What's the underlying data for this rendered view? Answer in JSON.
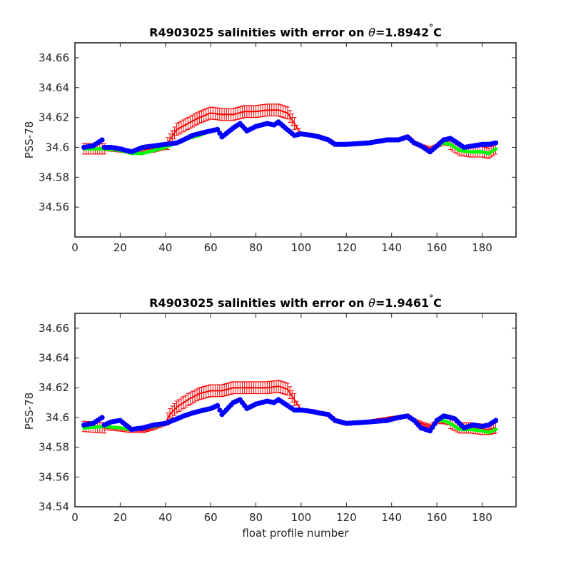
{
  "colors": {
    "error_bar": "#ff0000",
    "calibrated": "#00ff00",
    "float": "#0000ff",
    "axes": "#262626"
  },
  "chart_data": [
    {
      "type": "scatter",
      "title_prefix": "R4903025 salinities with error on ",
      "title_theta": "θ",
      "title_suffix": "=1.8942",
      "title_degree": "°",
      "title_unit": "C",
      "xlabel": "",
      "ylabel": "PSS-78",
      "xlim": [
        0,
        195
      ],
      "ylim": [
        34.54,
        34.67
      ],
      "xticks": [
        0,
        20,
        40,
        60,
        80,
        100,
        120,
        140,
        160,
        180
      ],
      "yticks": [
        34.56,
        34.58,
        34.6,
        34.62,
        34.64,
        34.66
      ],
      "ytick_labels": [
        "34.56",
        "34.58",
        "34.6",
        "34.62",
        "34.64",
        "34.66"
      ],
      "grid": false,
      "error_ranges": [
        {
          "x": [
            4,
            13
          ],
          "d": 0.0035
        },
        {
          "x": [
            41,
            97
          ],
          "d": 0.004
        },
        {
          "x": [
            166,
            187
          ],
          "d": 0.0035
        }
      ],
      "float_anchors": [
        [
          4,
          34.6
        ],
        [
          8,
          34.601
        ],
        [
          12,
          34.605
        ],
        [
          13,
          34.6
        ],
        [
          16,
          34.6
        ],
        [
          20,
          34.599
        ],
        [
          25,
          34.597
        ],
        [
          30,
          34.6
        ],
        [
          35,
          34.601
        ],
        [
          40,
          34.602
        ],
        [
          45,
          34.603
        ],
        [
          48,
          34.605
        ],
        [
          52,
          34.608
        ],
        [
          57,
          34.61
        ],
        [
          60,
          34.611
        ],
        [
          63,
          34.612
        ],
        [
          65,
          34.607
        ],
        [
          70,
          34.613
        ],
        [
          73,
          34.616
        ],
        [
          76,
          34.611
        ],
        [
          80,
          34.614
        ],
        [
          85,
          34.616
        ],
        [
          88,
          34.615
        ],
        [
          90,
          34.617
        ],
        [
          93,
          34.613
        ],
        [
          97,
          34.608
        ],
        [
          100,
          34.609
        ],
        [
          105,
          34.608
        ],
        [
          108,
          34.607
        ],
        [
          112,
          34.605
        ],
        [
          115,
          34.602
        ],
        [
          120,
          34.602
        ],
        [
          130,
          34.603
        ],
        [
          138,
          34.605
        ],
        [
          143,
          34.605
        ],
        [
          147,
          34.607
        ],
        [
          150,
          34.603
        ],
        [
          153,
          34.601
        ],
        [
          157,
          34.597
        ],
        [
          160,
          34.601
        ],
        [
          163,
          34.605
        ],
        [
          166,
          34.606
        ],
        [
          168,
          34.604
        ],
        [
          172,
          34.6
        ],
        [
          176,
          34.601
        ],
        [
          180,
          34.602
        ],
        [
          183,
          34.602
        ],
        [
          186,
          34.603
        ]
      ],
      "calib_anchors": [
        [
          4,
          34.599
        ],
        [
          13,
          34.599
        ],
        [
          20,
          34.598
        ],
        [
          25,
          34.596
        ],
        [
          30,
          34.596
        ],
        [
          35,
          34.598
        ],
        [
          40,
          34.6
        ],
        [
          45,
          34.603
        ],
        [
          50,
          34.606
        ],
        [
          55,
          34.608
        ],
        [
          60,
          34.611
        ],
        [
          63,
          34.612
        ],
        [
          65,
          34.607
        ],
        [
          70,
          34.613
        ],
        [
          73,
          34.616
        ],
        [
          76,
          34.611
        ],
        [
          80,
          34.614
        ],
        [
          85,
          34.616
        ],
        [
          88,
          34.615
        ],
        [
          90,
          34.617
        ],
        [
          93,
          34.613
        ],
        [
          97,
          34.608
        ],
        [
          100,
          34.609
        ],
        [
          105,
          34.608
        ],
        [
          108,
          34.607
        ],
        [
          112,
          34.605
        ],
        [
          115,
          34.602
        ],
        [
          120,
          34.602
        ],
        [
          130,
          34.603
        ],
        [
          138,
          34.605
        ],
        [
          143,
          34.605
        ],
        [
          147,
          34.607
        ],
        [
          150,
          34.603
        ],
        [
          153,
          34.601
        ],
        [
          157,
          34.597
        ],
        [
          160,
          34.601
        ],
        [
          163,
          34.603
        ],
        [
          166,
          34.602
        ],
        [
          170,
          34.598
        ],
        [
          175,
          34.597
        ],
        [
          180,
          34.597
        ],
        [
          183,
          34.596
        ],
        [
          186,
          34.599
        ]
      ],
      "raw_anchors": [
        [
          4,
          34.599
        ],
        [
          13,
          34.599
        ],
        [
          20,
          34.598
        ],
        [
          25,
          34.597
        ],
        [
          30,
          34.597
        ],
        [
          35,
          34.598
        ],
        [
          40,
          34.6
        ],
        [
          42,
          34.605
        ],
        [
          45,
          34.612
        ],
        [
          50,
          34.616
        ],
        [
          55,
          34.62
        ],
        [
          60,
          34.623
        ],
        [
          65,
          34.622
        ],
        [
          70,
          34.622
        ],
        [
          75,
          34.624
        ],
        [
          80,
          34.624
        ],
        [
          85,
          34.625
        ],
        [
          90,
          34.625
        ],
        [
          94,
          34.623
        ],
        [
          97,
          34.616
        ],
        [
          100,
          34.609
        ],
        [
          105,
          34.608
        ],
        [
          108,
          34.607
        ],
        [
          112,
          34.605
        ],
        [
          115,
          34.602
        ],
        [
          120,
          34.602
        ],
        [
          130,
          34.603
        ],
        [
          138,
          34.605
        ],
        [
          143,
          34.605
        ],
        [
          147,
          34.607
        ],
        [
          150,
          34.603
        ],
        [
          153,
          34.601
        ],
        [
          157,
          34.599
        ],
        [
          160,
          34.601
        ],
        [
          163,
          34.603
        ],
        [
          166,
          34.602
        ],
        [
          170,
          34.598
        ],
        [
          175,
          34.597
        ],
        [
          180,
          34.597
        ],
        [
          183,
          34.596
        ],
        [
          186,
          34.599
        ]
      ]
    },
    {
      "type": "scatter",
      "title_prefix": "R4903025 salinities with error on ",
      "title_theta": "θ",
      "title_suffix": "=1.9461",
      "title_degree": "°",
      "title_unit": "C",
      "xlabel": "float profile number",
      "ylabel": "PSS-78",
      "xlim": [
        0,
        195
      ],
      "ylim": [
        34.54,
        34.67
      ],
      "xticks": [
        0,
        20,
        40,
        60,
        80,
        100,
        120,
        140,
        160,
        180
      ],
      "yticks": [
        34.54,
        34.56,
        34.58,
        34.6,
        34.62,
        34.64,
        34.66
      ],
      "ytick_labels": [
        "34.54",
        "34.56",
        "34.58",
        "34.6",
        "34.62",
        "34.64",
        "34.66"
      ],
      "grid": false,
      "error_ranges": [
        {
          "x": [
            4,
            13
          ],
          "d": 0.0035
        },
        {
          "x": [
            41,
            97
          ],
          "d": 0.004
        },
        {
          "x": [
            166,
            187
          ],
          "d": 0.0035
        }
      ],
      "float_anchors": [
        [
          4,
          34.595
        ],
        [
          8,
          34.596
        ],
        [
          12,
          34.6
        ],
        [
          13,
          34.595
        ],
        [
          16,
          34.597
        ],
        [
          20,
          34.598
        ],
        [
          25,
          34.592
        ],
        [
          30,
          34.593
        ],
        [
          35,
          34.595
        ],
        [
          40,
          34.596
        ],
        [
          45,
          34.599
        ],
        [
          48,
          34.601
        ],
        [
          52,
          34.603
        ],
        [
          57,
          34.605
        ],
        [
          60,
          34.606
        ],
        [
          63,
          34.608
        ],
        [
          65,
          34.602
        ],
        [
          70,
          34.61
        ],
        [
          73,
          34.612
        ],
        [
          76,
          34.606
        ],
        [
          80,
          34.609
        ],
        [
          85,
          34.611
        ],
        [
          88,
          34.61
        ],
        [
          90,
          34.612
        ],
        [
          93,
          34.609
        ],
        [
          97,
          34.605
        ],
        [
          100,
          34.605
        ],
        [
          105,
          34.604
        ],
        [
          108,
          34.603
        ],
        [
          112,
          34.602
        ],
        [
          115,
          34.598
        ],
        [
          120,
          34.596
        ],
        [
          130,
          34.597
        ],
        [
          138,
          34.598
        ],
        [
          143,
          34.6
        ],
        [
          147,
          34.601
        ],
        [
          150,
          34.598
        ],
        [
          153,
          34.593
        ],
        [
          157,
          34.591
        ],
        [
          160,
          34.598
        ],
        [
          163,
          34.601
        ],
        [
          166,
          34.6
        ],
        [
          168,
          34.599
        ],
        [
          172,
          34.593
        ],
        [
          176,
          34.595
        ],
        [
          180,
          34.594
        ],
        [
          183,
          34.595
        ],
        [
          186,
          34.598
        ]
      ],
      "calib_anchors": [
        [
          4,
          34.593
        ],
        [
          13,
          34.594
        ],
        [
          20,
          34.593
        ],
        [
          25,
          34.592
        ],
        [
          30,
          34.593
        ],
        [
          35,
          34.594
        ],
        [
          40,
          34.596
        ],
        [
          45,
          34.599
        ],
        [
          50,
          34.602
        ],
        [
          55,
          34.604
        ],
        [
          60,
          34.606
        ],
        [
          63,
          34.608
        ],
        [
          65,
          34.602
        ],
        [
          70,
          34.61
        ],
        [
          73,
          34.612
        ],
        [
          76,
          34.606
        ],
        [
          80,
          34.609
        ],
        [
          85,
          34.611
        ],
        [
          88,
          34.61
        ],
        [
          90,
          34.612
        ],
        [
          93,
          34.609
        ],
        [
          97,
          34.605
        ],
        [
          100,
          34.605
        ],
        [
          105,
          34.604
        ],
        [
          108,
          34.603
        ],
        [
          112,
          34.602
        ],
        [
          115,
          34.598
        ],
        [
          120,
          34.596
        ],
        [
          130,
          34.597
        ],
        [
          138,
          34.598
        ],
        [
          143,
          34.6
        ],
        [
          147,
          34.601
        ],
        [
          150,
          34.598
        ],
        [
          153,
          34.593
        ],
        [
          157,
          34.591
        ],
        [
          160,
          34.598
        ],
        [
          163,
          34.598
        ],
        [
          166,
          34.596
        ],
        [
          170,
          34.592
        ],
        [
          175,
          34.592
        ],
        [
          180,
          34.591
        ],
        [
          183,
          34.59
        ],
        [
          186,
          34.592
        ]
      ],
      "raw_anchors": [
        [
          4,
          34.594
        ],
        [
          13,
          34.593
        ],
        [
          20,
          34.592
        ],
        [
          25,
          34.591
        ],
        [
          30,
          34.591
        ],
        [
          35,
          34.593
        ],
        [
          40,
          34.596
        ],
        [
          42,
          34.602
        ],
        [
          45,
          34.607
        ],
        [
          50,
          34.612
        ],
        [
          55,
          34.616
        ],
        [
          60,
          34.618
        ],
        [
          65,
          34.618
        ],
        [
          70,
          34.62
        ],
        [
          75,
          34.62
        ],
        [
          80,
          34.62
        ],
        [
          85,
          34.62
        ],
        [
          90,
          34.621
        ],
        [
          94,
          34.619
        ],
        [
          97,
          34.612
        ],
        [
          100,
          34.605
        ],
        [
          105,
          34.604
        ],
        [
          108,
          34.603
        ],
        [
          112,
          34.602
        ],
        [
          115,
          34.598
        ],
        [
          120,
          34.596
        ],
        [
          130,
          34.597
        ],
        [
          138,
          34.599
        ],
        [
          143,
          34.6
        ],
        [
          147,
          34.601
        ],
        [
          150,
          34.598
        ],
        [
          153,
          34.596
        ],
        [
          157,
          34.594
        ],
        [
          160,
          34.597
        ],
        [
          163,
          34.597
        ],
        [
          166,
          34.596
        ],
        [
          170,
          34.593
        ],
        [
          175,
          34.593
        ],
        [
          180,
          34.592
        ],
        [
          183,
          34.592
        ],
        [
          186,
          34.593
        ]
      ]
    }
  ]
}
